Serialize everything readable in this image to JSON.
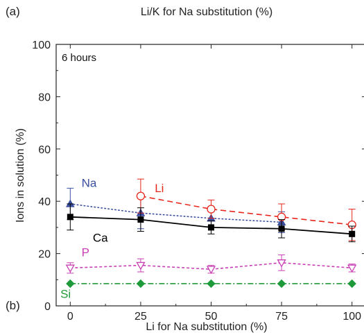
{
  "panel_labels": {
    "top": "(a)",
    "bottom": "(b)"
  },
  "chart_data": {
    "type": "line",
    "title": "Li/K for Na substitution (%)",
    "xlabel": "Li for Na substitution (%)",
    "ylabel": "Ions in solution (%)",
    "annotation": "6 hours",
    "xlim": [
      -5,
      105
    ],
    "ylim": [
      0,
      100
    ],
    "xticks": [
      0,
      25,
      50,
      75,
      100
    ],
    "yticks": [
      0,
      20,
      40,
      60,
      80,
      100
    ],
    "grid": false,
    "series": [
      {
        "name": "Na",
        "color": "#3b4fa0",
        "line": "dotted",
        "marker": "triangle-filled",
        "x": [
          0,
          25,
          50,
          75
        ],
        "y": [
          39,
          35.5,
          33.5,
          32
        ],
        "err": [
          6,
          6,
          3,
          4
        ]
      },
      {
        "name": "Li",
        "color": "#e8261c",
        "line": "dashed",
        "marker": "circle-open",
        "x": [
          25,
          50,
          75,
          100
        ],
        "y": [
          42,
          37,
          34,
          31
        ],
        "err": [
          6.5,
          3.5,
          5,
          6
        ]
      },
      {
        "name": "Ca",
        "color": "#000000",
        "line": "solid",
        "marker": "square-filled",
        "x": [
          0,
          25,
          50,
          75,
          100
        ],
        "y": [
          34,
          33,
          30,
          29.5,
          27.5
        ],
        "err": [
          5,
          4.5,
          2.5,
          3.5,
          3
        ]
      },
      {
        "name": "P",
        "color": "#c93fb5",
        "line": "short-dashed",
        "marker": "triangle-down-open",
        "x": [
          0,
          25,
          50,
          75,
          100
        ],
        "y": [
          14.5,
          15.5,
          14,
          16.5,
          14.5
        ],
        "err": [
          2,
          2.5,
          1.5,
          3,
          1.5
        ]
      },
      {
        "name": "Si",
        "color": "#1e9a3a",
        "line": "dash-dot",
        "marker": "diamond-filled",
        "x": [
          0,
          25,
          50,
          75,
          100
        ],
        "y": [
          8.5,
          8.5,
          8.5,
          8.5,
          8.5
        ],
        "err": [
          0,
          0,
          0,
          0,
          0
        ]
      }
    ],
    "series_labels": [
      {
        "name": "Na",
        "at_x": 4,
        "at_y": 45.5
      },
      {
        "name": "Li",
        "at_x": 30,
        "at_y": 43.5
      },
      {
        "name": "Ca",
        "at_x": 8,
        "at_y": 24.5
      },
      {
        "name": "P",
        "at_x": 4,
        "at_y": 19
      },
      {
        "name": "Si",
        "at_x": -3.5,
        "at_y": 3
      }
    ]
  }
}
